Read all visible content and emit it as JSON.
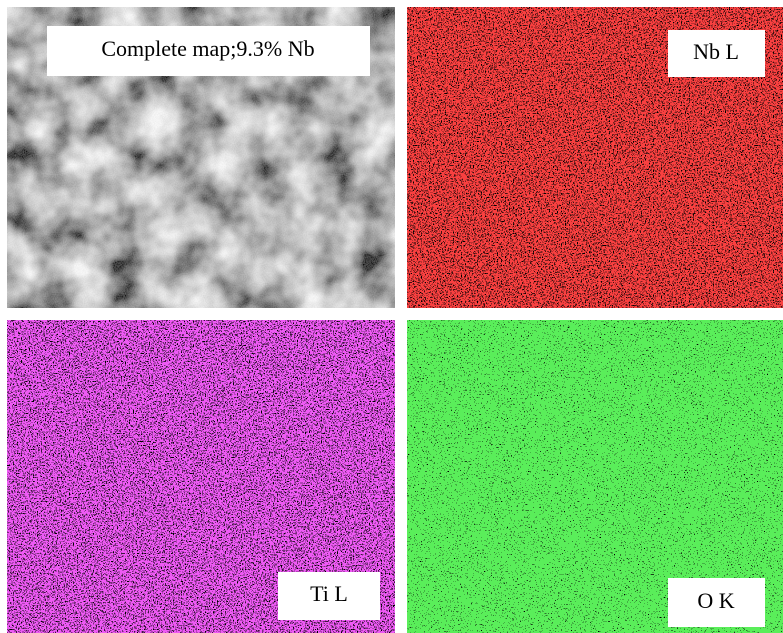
{
  "panels": [
    {
      "label": "Complete map;9.3% Nb"
    },
    {
      "label": "Nb L"
    },
    {
      "label": "Ti L"
    },
    {
      "label": "O K"
    }
  ]
}
